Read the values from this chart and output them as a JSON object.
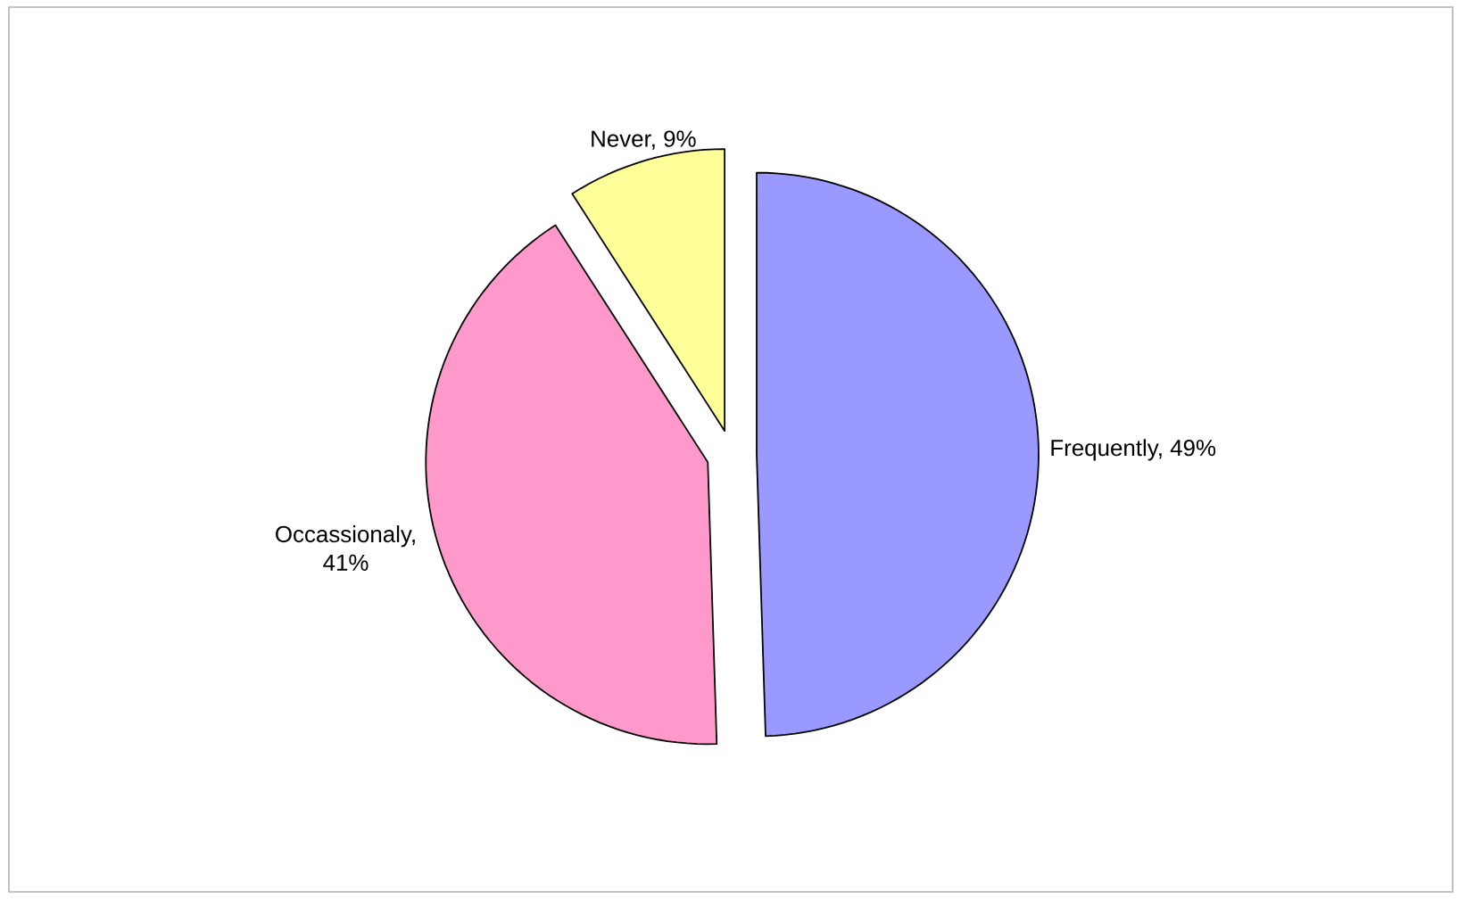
{
  "chart_data": {
    "type": "pie",
    "categories": [
      "Frequently, 49%",
      "Occassionaly, 41%",
      "Never, 9%"
    ],
    "values": [
      49,
      41,
      9
    ],
    "colors": [
      "#9999ff",
      "#ff99cc",
      "#ffff99"
    ]
  }
}
